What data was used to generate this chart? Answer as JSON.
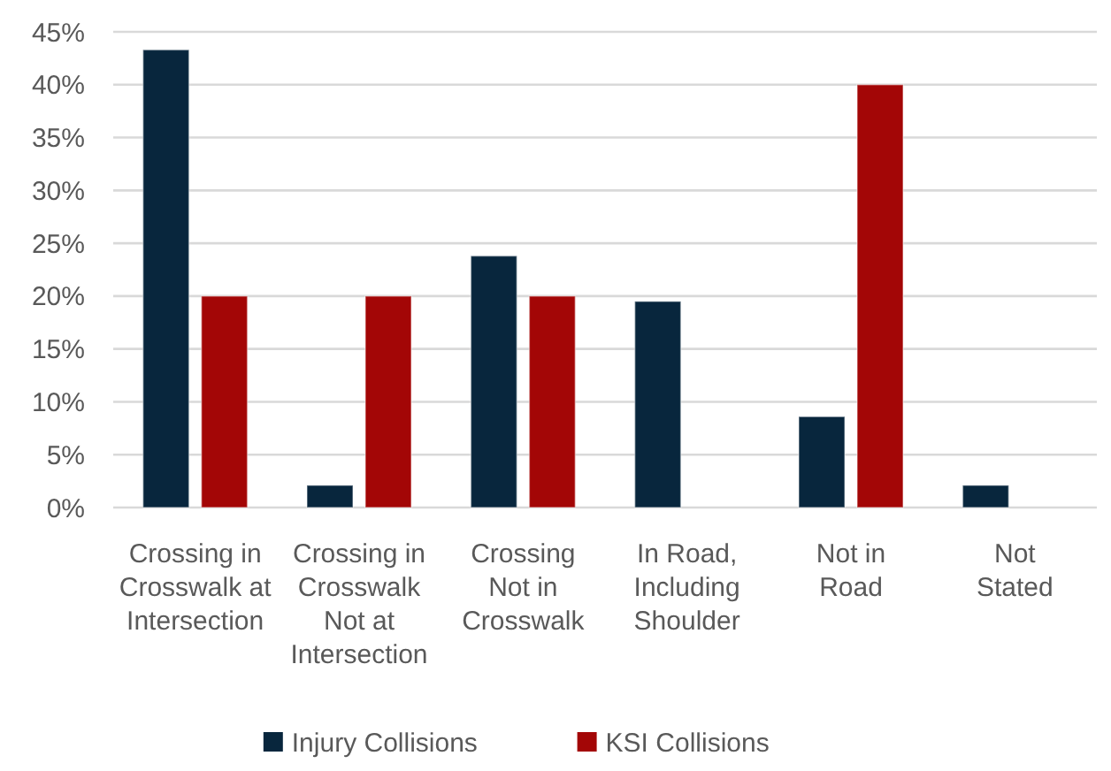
{
  "chart_data": {
    "type": "bar",
    "categories": [
      "Crossing in\nCrosswalk at\nIntersection",
      "Crossing in\nCrosswalk\nNot at\nIntersection",
      "Crossing\nNot in\nCrosswalk",
      "In Road,\nIncluding\nShoulder",
      "Not in\nRoad",
      "Not\nStated"
    ],
    "series": [
      {
        "name": "Injury Collisions",
        "color": "#08263d",
        "values": [
          43.3,
          2.1,
          23.8,
          19.5,
          8.6,
          2.1
        ]
      },
      {
        "name": "KSI Collisions",
        "color": "#a30606",
        "values": [
          20,
          20,
          20,
          0,
          40,
          0
        ]
      }
    ],
    "ylim": [
      0,
      45
    ],
    "yticks": [
      {
        "value": 0,
        "label": "0%"
      },
      {
        "value": 5,
        "label": "5%"
      },
      {
        "value": 10,
        "label": "10%"
      },
      {
        "value": 15,
        "label": "15%"
      },
      {
        "value": 20,
        "label": "20%"
      },
      {
        "value": 25,
        "label": "25%"
      },
      {
        "value": 30,
        "label": "30%"
      },
      {
        "value": 35,
        "label": "35%"
      },
      {
        "value": 40,
        "label": "40%"
      },
      {
        "value": 45,
        "label": "45%"
      }
    ],
    "grid": "y",
    "legend": "bottom"
  }
}
